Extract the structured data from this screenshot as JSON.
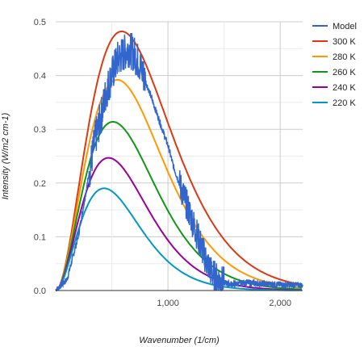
{
  "chart_data": {
    "type": "line",
    "title": "",
    "xlabel": "Wavenumber (1/cm)",
    "ylabel": "Intensity (W/m2 cm-1)",
    "xlim": [
      0,
      2200
    ],
    "ylim": [
      0,
      0.5
    ],
    "x_ticks": [
      1000,
      2000
    ],
    "x_tick_labels": [
      "1,000",
      "2,000"
    ],
    "y_ticks": [
      0,
      0.1,
      0.2,
      0.3,
      0.4,
      0.5
    ],
    "y_tick_labels": [
      "0.0",
      "0.1",
      "0.2",
      "0.3",
      "0.4",
      "0.5"
    ],
    "grid": true,
    "legend_position": "right",
    "series": [
      {
        "name": "Model",
        "color": "#3366cc",
        "x": [
          0,
          100,
          200,
          300,
          350,
          400,
          450,
          500,
          550,
          600,
          650,
          700,
          750,
          800,
          850,
          900,
          950,
          1000,
          1050,
          1100,
          1150,
          1200,
          1250,
          1300,
          1350,
          1400,
          1450,
          1500,
          1550,
          1600,
          1700,
          1800,
          1900,
          2000,
          2100,
          2200
        ],
        "y": [
          0,
          0.02,
          0.1,
          0.22,
          0.28,
          0.32,
          0.37,
          0.4,
          0.43,
          0.44,
          0.45,
          0.44,
          0.42,
          0.39,
          0.36,
          0.33,
          0.3,
          0.27,
          0.23,
          0.2,
          0.17,
          0.14,
          0.11,
          0.08,
          0.05,
          0.03,
          0.02,
          0.015,
          0.012,
          0.012,
          0.015,
          0.013,
          0.012,
          0.011,
          0.01,
          0.01
        ]
      },
      {
        "name": "300 K",
        "color": "#dc3912",
        "temperature_k": 300
      },
      {
        "name": "280 K",
        "color": "#ff9900",
        "temperature_k": 280
      },
      {
        "name": "260 K",
        "color": "#109618",
        "temperature_k": 260
      },
      {
        "name": "240 K",
        "color": "#990099",
        "temperature_k": 240
      },
      {
        "name": "220 K",
        "color": "#0099c6",
        "temperature_k": 220
      }
    ]
  }
}
